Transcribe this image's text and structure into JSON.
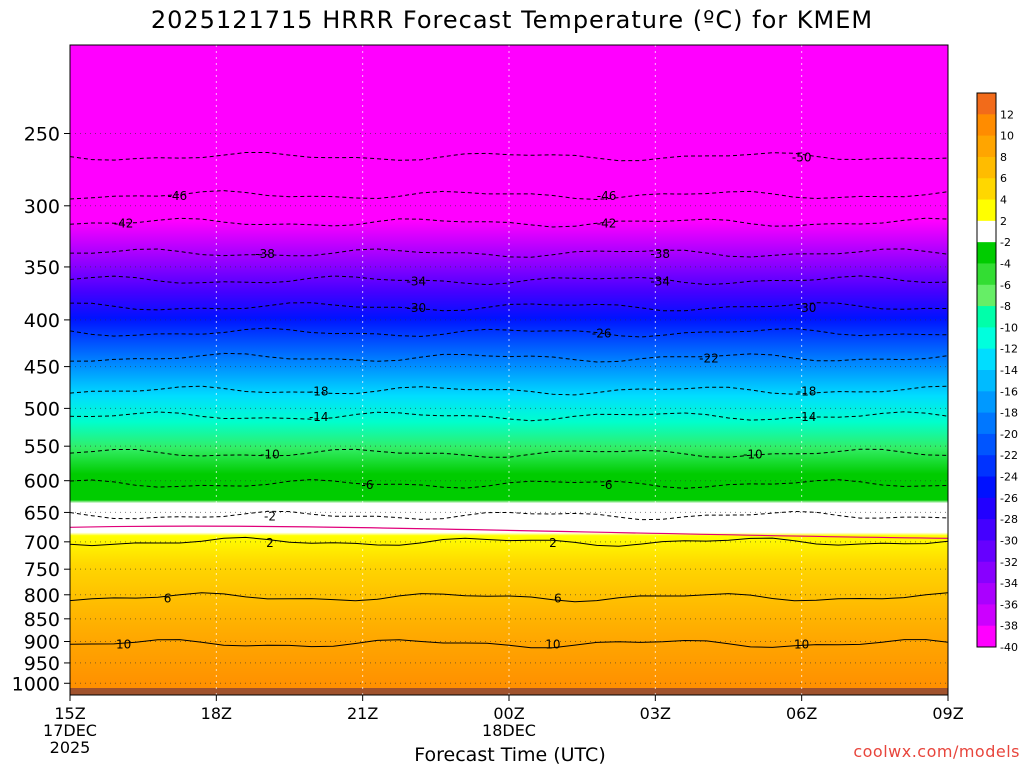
{
  "chart_data": {
    "type": "heatmap",
    "title": "2025121715 HRRR Forecast Temperature (ºC) for KMEM",
    "xlabel": "Forecast Time (UTC)",
    "ylabel": "",
    "credit": "coolwx.com/models",
    "x_ticks": [
      {
        "hours": 0,
        "lines": [
          "15Z",
          "17DEC",
          "2025"
        ]
      },
      {
        "hours": 3,
        "lines": [
          "18Z"
        ]
      },
      {
        "hours": 6,
        "lines": [
          "21Z"
        ]
      },
      {
        "hours": 9,
        "lines": [
          "00Z",
          "18DEC"
        ]
      },
      {
        "hours": 12,
        "lines": [
          "03Z"
        ]
      },
      {
        "hours": 15,
        "lines": [
          "06Z"
        ]
      },
      {
        "hours": 18,
        "lines": [
          "09Z"
        ]
      }
    ],
    "xlim_hours": [
      0,
      18
    ],
    "y_scale": "log-pressure",
    "ylim_hPa": [
      1030,
      200
    ],
    "y_ticks": [
      250,
      300,
      350,
      400,
      450,
      500,
      550,
      600,
      650,
      700,
      750,
      800,
      850,
      900,
      950,
      1000
    ],
    "colorbar": {
      "placement": "right",
      "labels": [
        "12",
        "10",
        "8",
        "6",
        "4",
        "2",
        "-2",
        "-4",
        "-6",
        "-8",
        "-10",
        "-12",
        "-14",
        "-16",
        "-18",
        "-20",
        "-22",
        "-24",
        "-26",
        "-28",
        "-30",
        "-32",
        "-34",
        "-36",
        "-38",
        "-40"
      ],
      "colors": [
        "#f26b1a",
        "#ff8c00",
        "#ffa500",
        "#ffbc00",
        "#ffd700",
        "#ffff00",
        "#ffffff",
        "#00cc00",
        "#33dd33",
        "#66ee66",
        "#00ffaa",
        "#00ffdd",
        "#00ddff",
        "#00bbff",
        "#0099ff",
        "#0077ff",
        "#0055ff",
        "#0033ff",
        "#0011ff",
        "#2200ff",
        "#4400ff",
        "#6600ff",
        "#8800ff",
        "#aa00ff",
        "#cc00ff",
        "#ff00ff"
      ]
    },
    "contours": [
      {
        "value": "-50",
        "pressure": 265,
        "labels": [
          {
            "hours": 15.0
          }
        ]
      },
      {
        "value": "-46",
        "pressure": 292,
        "labels": [
          {
            "hours": 2.2
          },
          {
            "hours": 11.0
          }
        ]
      },
      {
        "value": "-42",
        "pressure": 313,
        "labels": [
          {
            "hours": 1.1
          },
          {
            "hours": 11.0
          }
        ]
      },
      {
        "value": "-38",
        "pressure": 338,
        "labels": [
          {
            "hours": 4.0
          },
          {
            "hours": 12.1
          }
        ]
      },
      {
        "value": "-34",
        "pressure": 362,
        "labels": [
          {
            "hours": 7.1
          },
          {
            "hours": 12.1
          }
        ]
      },
      {
        "value": "-30",
        "pressure": 387,
        "labels": [
          {
            "hours": 7.1
          },
          {
            "hours": 15.1
          }
        ]
      },
      {
        "value": "-26",
        "pressure": 413,
        "labels": [
          {
            "hours": 10.9
          }
        ]
      },
      {
        "value": "-22",
        "pressure": 440,
        "labels": [
          {
            "hours": 13.1
          }
        ]
      },
      {
        "value": "-18",
        "pressure": 478,
        "labels": [
          {
            "hours": 5.1
          },
          {
            "hours": 15.1
          }
        ]
      },
      {
        "value": "-14",
        "pressure": 510,
        "labels": [
          {
            "hours": 5.1
          },
          {
            "hours": 15.1
          }
        ]
      },
      {
        "value": "-10",
        "pressure": 560,
        "labels": [
          {
            "hours": 4.1
          },
          {
            "hours": 14.0
          }
        ]
      },
      {
        "value": "-6",
        "pressure": 605,
        "labels": [
          {
            "hours": 6.1
          },
          {
            "hours": 11.0
          }
        ]
      },
      {
        "value": "-2",
        "pressure": 655,
        "labels": [
          {
            "hours": 4.1
          }
        ]
      },
      {
        "value": "2",
        "pressure": 700,
        "labels": [
          {
            "hours": 4.1
          },
          {
            "hours": 9.9
          }
        ]
      },
      {
        "value": "6",
        "pressure": 805,
        "labels": [
          {
            "hours": 2.0
          },
          {
            "hours": 10.0
          }
        ]
      },
      {
        "value": "10",
        "pressure": 905,
        "labels": [
          {
            "hours": 1.1
          },
          {
            "hours": 9.9
          },
          {
            "hours": 15.0
          }
        ]
      }
    ]
  }
}
